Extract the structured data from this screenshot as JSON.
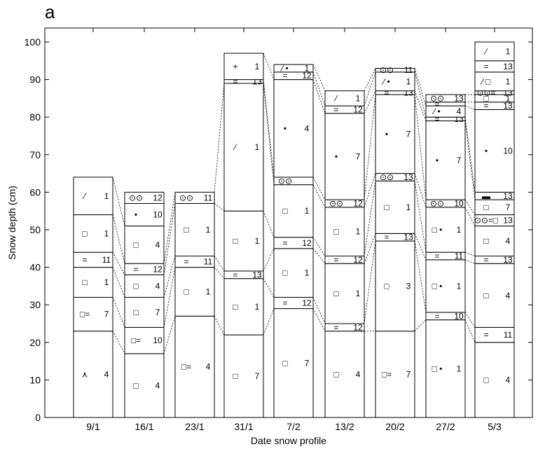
{
  "panel_label": "a",
  "chart_data": {
    "type": "bar",
    "title": "",
    "xlabel": "Date snow profile",
    "ylabel": "Snow depth (cm)",
    "ylim": [
      0,
      105
    ],
    "yticks": [
      0,
      10,
      20,
      30,
      40,
      50,
      60,
      70,
      80,
      90,
      100
    ],
    "grid": false,
    "categories": [
      "9/1",
      "16/1",
      "23/1",
      "31/1",
      "7/2",
      "13/2",
      "20/2",
      "27/2",
      "5/3"
    ],
    "profiles": [
      {
        "date": "9/1",
        "layers": [
          {
            "bottom": 0,
            "top": 23,
            "symbol": "⋏",
            "code": "4"
          },
          {
            "bottom": 23,
            "top": 32,
            "symbol": "□=",
            "code": "7"
          },
          {
            "bottom": 32,
            "top": 40,
            "symbol": "□",
            "code": "1"
          },
          {
            "bottom": 40,
            "top": 44,
            "symbol": "=",
            "code": "11"
          },
          {
            "bottom": 44,
            "top": 54,
            "symbol": "□",
            "code": "1"
          },
          {
            "bottom": 54,
            "top": 64,
            "symbol": "⁄",
            "code": "1"
          }
        ]
      },
      {
        "date": "16/1",
        "layers": [
          {
            "bottom": 0,
            "top": 17,
            "symbol": "□",
            "code": "4"
          },
          {
            "bottom": 17,
            "top": 24,
            "symbol": "□=",
            "code": "10"
          },
          {
            "bottom": 24,
            "top": 32,
            "symbol": "□",
            "code": "7"
          },
          {
            "bottom": 32,
            "top": 38,
            "symbol": "□",
            "code": "4"
          },
          {
            "bottom": 38,
            "top": 41,
            "symbol": "=",
            "code": "12"
          },
          {
            "bottom": 41,
            "top": 51,
            "symbol": "□",
            "code": "4"
          },
          {
            "bottom": 51,
            "top": 57,
            "symbol": "•",
            "code": "10"
          },
          {
            "bottom": 57,
            "top": 60,
            "symbol": "⊙⊙",
            "code": "12"
          }
        ]
      },
      {
        "date": "23/1",
        "layers": [
          {
            "bottom": 0,
            "top": 27,
            "symbol": "□=",
            "code": "4"
          },
          {
            "bottom": 27,
            "top": 40,
            "symbol": "□",
            "code": "1"
          },
          {
            "bottom": 40,
            "top": 43,
            "symbol": "=",
            "code": "11"
          },
          {
            "bottom": 43,
            "top": 57,
            "symbol": "□",
            "code": "1"
          },
          {
            "bottom": 57,
            "top": 60,
            "symbol": "⊙⊙",
            "code": "11"
          }
        ]
      },
      {
        "date": "31/1",
        "layers": [
          {
            "bottom": 0,
            "top": 22,
            "symbol": "□",
            "code": "7"
          },
          {
            "bottom": 22,
            "top": 37,
            "symbol": "□",
            "code": "1"
          },
          {
            "bottom": 37,
            "top": 39,
            "symbol": "=",
            "code": "13"
          },
          {
            "bottom": 39,
            "top": 55,
            "symbol": "□",
            "code": "1"
          },
          {
            "bottom": 55,
            "top": 89,
            "symbol": "⁄",
            "code": "1"
          },
          {
            "bottom": 89,
            "top": 90,
            "symbol": "=",
            "code": "13"
          },
          {
            "bottom": 90,
            "top": 97,
            "symbol": "+",
            "code": "1"
          }
        ]
      },
      {
        "date": "7/2",
        "layers": [
          {
            "bottom": 0,
            "top": 29,
            "symbol": "□",
            "code": "7"
          },
          {
            "bottom": 29,
            "top": 32,
            "symbol": "=",
            "code": "12"
          },
          {
            "bottom": 32,
            "top": 45,
            "symbol": "□",
            "code": "1"
          },
          {
            "bottom": 45,
            "top": 48,
            "symbol": "=",
            "code": "12"
          },
          {
            "bottom": 48,
            "top": 62,
            "symbol": "□",
            "code": "1"
          },
          {
            "bottom": 62,
            "top": 64,
            "symbol": "⊙⊙",
            "code": ""
          },
          {
            "bottom": 64,
            "top": 90,
            "symbol": "•",
            "code": "4"
          },
          {
            "bottom": 90,
            "top": 92,
            "symbol": "=",
            "code": "12"
          },
          {
            "bottom": 92,
            "top": 94,
            "symbol": "⁄ •",
            "code": "1"
          }
        ]
      },
      {
        "date": "13/2",
        "layers": [
          {
            "bottom": 0,
            "top": 23,
            "symbol": "□",
            "code": "4"
          },
          {
            "bottom": 23,
            "top": 25,
            "symbol": "=",
            "code": "12"
          },
          {
            "bottom": 25,
            "top": 41,
            "symbol": "□",
            "code": "1"
          },
          {
            "bottom": 41,
            "top": 43,
            "symbol": "=",
            "code": "12"
          },
          {
            "bottom": 43,
            "top": 56,
            "symbol": "□",
            "code": "1"
          },
          {
            "bottom": 56,
            "top": 58,
            "symbol": "⊙⊙",
            "code": "12"
          },
          {
            "bottom": 58,
            "top": 81,
            "symbol": "•",
            "code": "7"
          },
          {
            "bottom": 81,
            "top": 83,
            "symbol": "=",
            "code": "12"
          },
          {
            "bottom": 83,
            "top": 87,
            "symbol": "⁄",
            "code": "1"
          }
        ]
      },
      {
        "date": "20/2",
        "layers": [
          {
            "bottom": 0,
            "top": 23,
            "symbol": "□=",
            "code": "7"
          },
          {
            "bottom": 23,
            "top": 47,
            "symbol": "□",
            "code": "3"
          },
          {
            "bottom": 47,
            "top": 49,
            "symbol": "=",
            "code": "13"
          },
          {
            "bottom": 49,
            "top": 63,
            "symbol": "□",
            "code": "1"
          },
          {
            "bottom": 63,
            "top": 65,
            "symbol": "⊙⊙",
            "code": "13"
          },
          {
            "bottom": 65,
            "top": 86,
            "symbol": "•",
            "code": "7"
          },
          {
            "bottom": 86,
            "top": 87,
            "symbol": "=",
            "code": "13"
          },
          {
            "bottom": 87,
            "top": 92,
            "symbol": "⁄ •",
            "code": "1"
          },
          {
            "bottom": 92,
            "top": 93,
            "symbol": "⊙⊙",
            "code": "11"
          }
        ]
      },
      {
        "date": "27/2",
        "layers": [
          {
            "bottom": 0,
            "top": 26,
            "symbol": "□ •",
            "code": "1"
          },
          {
            "bottom": 26,
            "top": 28,
            "symbol": "=",
            "code": "10"
          },
          {
            "bottom": 28,
            "top": 42,
            "symbol": "□ •",
            "code": "1"
          },
          {
            "bottom": 42,
            "top": 44,
            "symbol": "=",
            "code": "11"
          },
          {
            "bottom": 44,
            "top": 56,
            "symbol": "□ •",
            "code": "1"
          },
          {
            "bottom": 56,
            "top": 58,
            "symbol": "⊙⊙",
            "code": "10"
          },
          {
            "bottom": 58,
            "top": 79,
            "symbol": "•",
            "code": "7"
          },
          {
            "bottom": 79,
            "top": 80,
            "symbol": "=",
            "code": "13"
          },
          {
            "bottom": 80,
            "top": 83,
            "symbol": "⁄ •",
            "code": "4"
          },
          {
            "bottom": 83,
            "top": 84,
            "symbol": "=",
            "code": ""
          },
          {
            "bottom": 84,
            "top": 86,
            "symbol": "⊙⊙",
            "code": "13"
          }
        ]
      },
      {
        "date": "5/3",
        "layers": [
          {
            "bottom": 0,
            "top": 20,
            "symbol": "□",
            "code": "4"
          },
          {
            "bottom": 20,
            "top": 24,
            "symbol": "=",
            "code": "11"
          },
          {
            "bottom": 24,
            "top": 41,
            "symbol": "□",
            "code": "4"
          },
          {
            "bottom": 41,
            "top": 43,
            "symbol": "=",
            "code": "13"
          },
          {
            "bottom": 43,
            "top": 51,
            "symbol": "□",
            "code": "4"
          },
          {
            "bottom": 51,
            "top": 54,
            "symbol": "⊙⊙=□",
            "code": "13"
          },
          {
            "bottom": 54,
            "top": 58,
            "symbol": "□",
            "code": "7"
          },
          {
            "bottom": 58,
            "top": 60,
            "symbol": "▬",
            "code": "13"
          },
          {
            "bottom": 60,
            "top": 82,
            "symbol": "•",
            "code": "10"
          },
          {
            "bottom": 82,
            "top": 84,
            "symbol": "=",
            "code": "13"
          },
          {
            "bottom": 84,
            "top": 86,
            "symbol": "□",
            "code": "1"
          },
          {
            "bottom": 86,
            "top": 87,
            "symbol": "⊙⊙=",
            "code": "13"
          },
          {
            "bottom": 87,
            "top": 92,
            "symbol": "⁄ □",
            "code": "1"
          },
          {
            "bottom": 92,
            "top": 95,
            "symbol": "=",
            "code": "13"
          },
          {
            "bottom": 95,
            "top": 100,
            "symbol": "⁄",
            "code": "1"
          }
        ]
      }
    ]
  }
}
